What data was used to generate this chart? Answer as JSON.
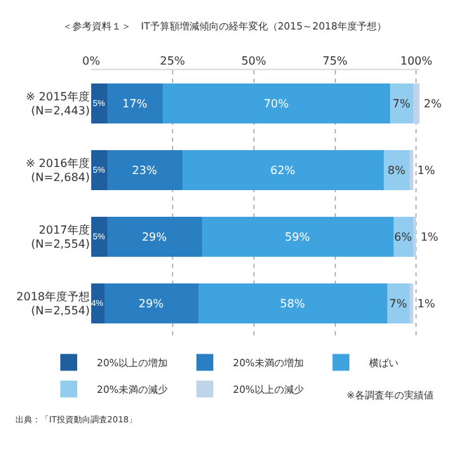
{
  "chart_data": {
    "type": "bar",
    "orientation": "horizontal",
    "stacked": true,
    "title": "＜参考資料１＞　IT予算額増減傾向の経年変化（2015～2018年度予想）",
    "categories": [
      "※ 2015年度\n(N=2,443)",
      "※ 2016年度\n(N=2,684)",
      "2017年度\n(N=2,554)",
      "2018年度予想\n(N=2,554)"
    ],
    "series": [
      {
        "name": "20%以上の増加",
        "color": "#1f5f9f",
        "values": [
          5,
          5,
          5,
          4
        ],
        "value_labels": [
          "5%",
          "5%",
          "5%",
          "4%"
        ]
      },
      {
        "name": "20%未満の増加",
        "color": "#2a7fc2",
        "values": [
          17,
          23,
          29,
          29
        ],
        "value_labels": [
          "17%",
          "23%",
          "29%",
          "29%"
        ]
      },
      {
        "name": "横ばい",
        "color": "#3fa3e0",
        "values": [
          70,
          62,
          59,
          58
        ],
        "value_labels": [
          "70%",
          "62%",
          "59%",
          "58%"
        ]
      },
      {
        "name": "20%未満の減少",
        "color": "#92cdf0",
        "values": [
          7,
          8,
          6,
          7
        ],
        "value_labels": [
          "7%",
          "8%",
          "6%",
          "7%"
        ]
      },
      {
        "name": "20%以上の減少",
        "color": "#bfd3ea",
        "values": [
          2,
          1,
          1,
          1
        ],
        "value_labels": [
          "2%",
          "1%",
          "1%",
          "1%"
        ]
      }
    ],
    "xlim": [
      0,
      101
    ],
    "xticks": [
      {
        "value": 0,
        "label": "0%"
      },
      {
        "value": 25,
        "label": "25%"
      },
      {
        "value": 50,
        "label": "50%"
      },
      {
        "value": 75,
        "label": "75%"
      },
      {
        "value": 100,
        "label": "100%"
      }
    ],
    "grid": "x",
    "legend": "bottom",
    "annotations": [
      "※各調査年の実績値",
      "出典：「IT投資動向調査2018」"
    ]
  }
}
